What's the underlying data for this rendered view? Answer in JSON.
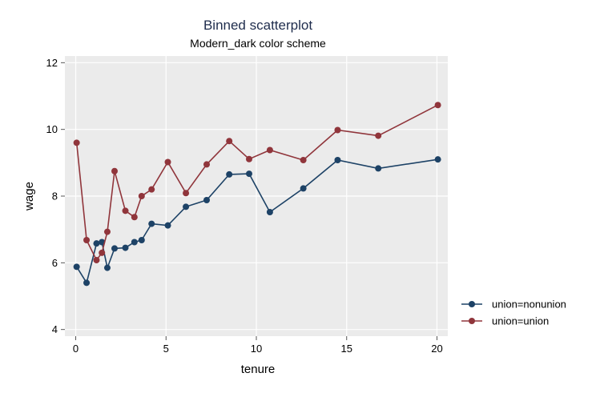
{
  "chart_data": {
    "type": "line",
    "title": "Binned scatterplot",
    "subtitle": "Modern_dark color scheme",
    "xlabel": "tenure",
    "ylabel": "wage",
    "xlim": [
      -0.6,
      20.6
    ],
    "ylim": [
      3.8,
      12.2
    ],
    "xticks": [
      0,
      5,
      10,
      15,
      20
    ],
    "yticks": [
      4,
      6,
      8,
      10,
      12
    ],
    "grid": true,
    "legend_position": "right",
    "colors": {
      "plot_background": "#ebebeb",
      "page_background": "#ffffff",
      "grid": "#ffffff",
      "axis_text": "#000000",
      "title": "#1f2d4d"
    },
    "series": [
      {
        "name": "union=nonunion",
        "color": "#1d4266",
        "x": [
          0.05,
          0.6,
          1.15,
          1.45,
          1.75,
          2.15,
          2.75,
          3.25,
          3.65,
          4.2,
          5.1,
          6.1,
          7.25,
          8.5,
          9.6,
          10.75,
          12.6,
          14.5,
          16.75,
          20.05
        ],
        "y": [
          5.88,
          5.4,
          6.58,
          6.62,
          5.85,
          6.43,
          6.45,
          6.62,
          6.68,
          7.17,
          7.12,
          7.68,
          7.88,
          8.65,
          8.67,
          7.52,
          8.23,
          9.08,
          8.83,
          9.1
        ]
      },
      {
        "name": "union=union",
        "color": "#90353b",
        "x": [
          0.05,
          0.6,
          1.15,
          1.45,
          1.75,
          2.15,
          2.75,
          3.25,
          3.65,
          4.2,
          5.1,
          6.1,
          7.25,
          8.5,
          9.6,
          10.75,
          12.6,
          14.5,
          16.75,
          20.05
        ],
        "y": [
          9.6,
          6.68,
          6.08,
          6.3,
          6.93,
          8.75,
          7.56,
          7.37,
          8.0,
          8.2,
          9.02,
          8.09,
          8.95,
          9.65,
          9.11,
          9.38,
          9.08,
          9.98,
          9.81,
          10.73
        ]
      }
    ]
  }
}
